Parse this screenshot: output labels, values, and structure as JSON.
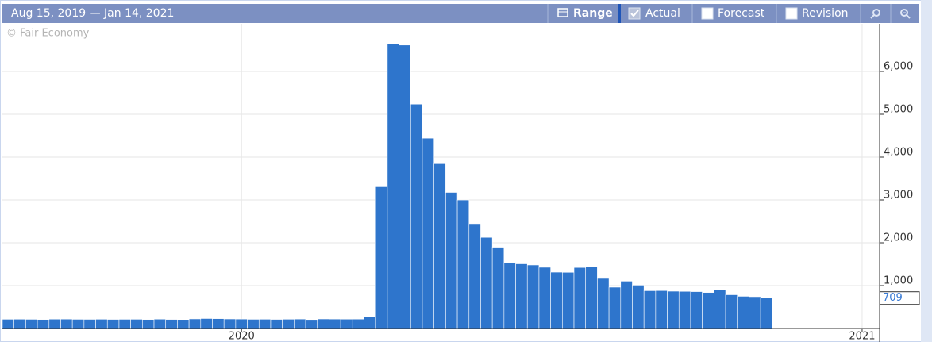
{
  "header": {
    "range_text": "Aug 15, 2019 — Jan 14, 2021",
    "range_button": "Range",
    "actual": "Actual",
    "forecast": "Forecast",
    "revision": "Revision"
  },
  "chart_data": {
    "type": "bar",
    "watermark": "© Fair Economy",
    "color": "#2e75cc",
    "values": [
      215,
      217,
      214,
      210,
      218,
      219,
      214,
      213,
      216,
      212,
      214,
      215,
      210,
      218,
      211,
      209,
      223,
      232,
      229,
      222,
      220,
      214,
      216,
      212,
      216,
      220,
      208,
      222,
      220,
      218,
      219,
      282,
      3307,
      6648,
      6615,
      5237,
      4442,
      3846,
      3176,
      2999,
      2446,
      2126,
      1897,
      1540,
      1509,
      1482,
      1427,
      1314,
      1310,
      1422,
      1435,
      1186,
      963,
      1104,
      1011,
      881,
      884,
      870,
      866,
      860,
      840,
      898,
      787,
      751,
      742,
      709
    ],
    "xlim": [
      0,
      75.2
    ],
    "xticks": [
      {
        "value": 20.5,
        "label": "2020"
      },
      {
        "value": 73.7,
        "label": "2021"
      }
    ],
    "ylim": [
      0,
      7111
    ],
    "yticks": [
      {
        "value": 1000,
        "label": "1,000"
      },
      {
        "value": 2000,
        "label": "2,000"
      },
      {
        "value": 3000,
        "label": "3,000"
      },
      {
        "value": 4000,
        "label": "4,000"
      },
      {
        "value": 5000,
        "label": "5,000"
      },
      {
        "value": 6000,
        "label": "6,000"
      }
    ],
    "grid": true
  }
}
